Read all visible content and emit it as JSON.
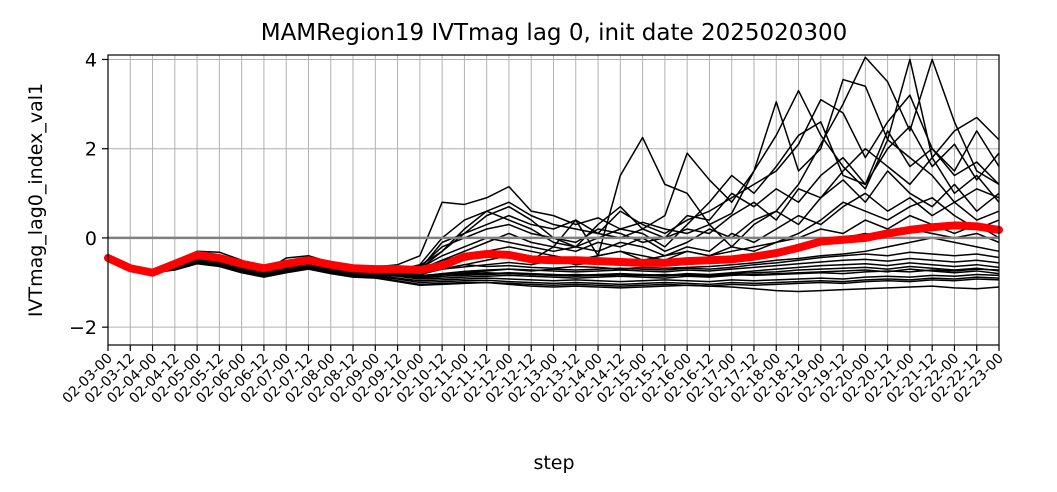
{
  "chart_data": {
    "type": "line",
    "title": "MAMRegion19 IVTmag lag 0, init date 2025020300",
    "xlabel": "step",
    "ylabel": "IVTmag_lag0_index_val1",
    "ylim": [
      -2.4,
      4.1
    ],
    "yticks": [
      -2,
      0,
      2,
      4
    ],
    "ytick_labels": [
      "−2",
      "0",
      "2",
      "4"
    ],
    "grid": true,
    "zero_line_color": "#808080",
    "ensemble_color": "#000000",
    "mean_color": "#ff0000",
    "categories": [
      "02-03-00",
      "02-03-12",
      "02-04-00",
      "02-04-12",
      "02-05-00",
      "02-05-12",
      "02-06-00",
      "02-06-12",
      "02-07-00",
      "02-07-12",
      "02-08-00",
      "02-08-12",
      "02-09-00",
      "02-09-12",
      "02-10-00",
      "02-10-12",
      "02-11-00",
      "02-11-12",
      "02-12-00",
      "02-12-12",
      "02-13-00",
      "02-13-12",
      "02-14-00",
      "02-14-12",
      "02-15-00",
      "02-15-12",
      "02-16-00",
      "02-16-12",
      "02-17-00",
      "02-17-12",
      "02-18-00",
      "02-18-12",
      "02-19-00",
      "02-19-12",
      "02-20-00",
      "02-20-12",
      "02-21-00",
      "02-21-12",
      "02-22-00",
      "02-22-12",
      "02-23-00"
    ],
    "ensemble_mean": [
      -0.45,
      -0.68,
      -0.78,
      -0.58,
      -0.38,
      -0.45,
      -0.58,
      -0.68,
      -0.58,
      -0.5,
      -0.6,
      -0.68,
      -0.7,
      -0.7,
      -0.72,
      -0.62,
      -0.42,
      -0.36,
      -0.38,
      -0.48,
      -0.5,
      -0.5,
      -0.52,
      -0.54,
      -0.56,
      -0.56,
      -0.52,
      -0.5,
      -0.48,
      -0.42,
      -0.34,
      -0.22,
      -0.08,
      -0.04,
      0.0,
      0.1,
      0.18,
      0.24,
      0.28,
      0.26,
      0.18
    ],
    "ensemble_members": [
      [
        -0.45,
        -0.68,
        -0.78,
        -0.55,
        -0.3,
        -0.32,
        -0.5,
        -0.75,
        -0.45,
        -0.4,
        -0.55,
        -0.62,
        -0.65,
        -0.6,
        -0.4,
        0.8,
        0.75,
        0.9,
        1.15,
        0.6,
        0.5,
        0.3,
        0.45,
        0.2,
        0.35,
        0.2,
        0.1,
        0.3,
        0.55,
        1.5,
        2.3,
        3.3,
        2.3,
        1.6,
        1.1,
        2.2,
        1.8,
        1.4,
        0.8,
        1.1,
        0.9
      ],
      [
        -0.45,
        -0.68,
        -0.78,
        -0.58,
        -0.38,
        -0.45,
        -0.6,
        -0.7,
        -0.6,
        -0.52,
        -0.62,
        -0.7,
        -0.72,
        -0.72,
        -0.75,
        -0.6,
        -0.5,
        -0.4,
        -0.42,
        -0.5,
        -0.2,
        0.4,
        -0.4,
        1.4,
        2.25,
        1.2,
        1.0,
        0.3,
        -0.2,
        0.3,
        0.6,
        1.2,
        2.1,
        3.0,
        4.05,
        3.5,
        2.4,
        4.0,
        2.6,
        1.5,
        1.2
      ],
      [
        -0.45,
        -0.68,
        -0.78,
        -0.6,
        -0.42,
        -0.48,
        -0.62,
        -0.72,
        -0.62,
        -0.55,
        -0.65,
        -0.72,
        -0.75,
        -0.74,
        -0.7,
        -0.3,
        0.2,
        0.6,
        0.8,
        0.5,
        0.3,
        0.2,
        0.1,
        0.0,
        0.2,
        0.5,
        1.9,
        1.3,
        0.8,
        1.5,
        3.05,
        1.5,
        2.0,
        3.55,
        3.4,
        2.2,
        4.0,
        1.8,
        2.4,
        2.7,
        2.2
      ],
      [
        -0.45,
        -0.68,
        -0.78,
        -0.62,
        -0.4,
        -0.46,
        -0.6,
        -0.7,
        -0.6,
        -0.54,
        -0.64,
        -0.7,
        -0.73,
        -0.75,
        -0.7,
        -0.1,
        0.1,
        0.3,
        0.5,
        0.3,
        0.2,
        0.4,
        0.1,
        0.6,
        0.3,
        0.1,
        0.4,
        0.6,
        0.9,
        1.2,
        1.5,
        2.1,
        3.1,
        2.8,
        1.8,
        2.6,
        3.2,
        2.0,
        1.5,
        2.4,
        1.6
      ],
      [
        -0.45,
        -0.68,
        -0.78,
        -0.58,
        -0.36,
        -0.44,
        -0.58,
        -0.68,
        -0.58,
        -0.5,
        -0.6,
        -0.68,
        -0.7,
        -0.72,
        -0.6,
        0.0,
        0.4,
        0.6,
        0.4,
        0.2,
        -0.1,
        -0.2,
        0.0,
        0.2,
        0.1,
        -0.2,
        0.3,
        0.8,
        1.4,
        1.0,
        1.6,
        2.3,
        2.6,
        1.4,
        1.2,
        2.0,
        2.5,
        1.6,
        2.1,
        1.3,
        1.9
      ],
      [
        -0.45,
        -0.68,
        -0.78,
        -0.56,
        -0.34,
        -0.42,
        -0.56,
        -0.66,
        -0.56,
        -0.48,
        -0.58,
        -0.66,
        -0.68,
        -0.7,
        -0.65,
        -0.2,
        0.0,
        0.2,
        0.3,
        0.1,
        0.0,
        -0.1,
        0.2,
        0.1,
        -0.1,
        0.0,
        0.2,
        0.1,
        0.5,
        0.8,
        0.4,
        1.1,
        0.9,
        1.5,
        2.0,
        1.6,
        1.2,
        1.8,
        1.0,
        1.4,
        0.8
      ],
      [
        -0.45,
        -0.68,
        -0.78,
        -0.6,
        -0.4,
        -0.46,
        -0.6,
        -0.72,
        -0.62,
        -0.54,
        -0.64,
        -0.72,
        -0.75,
        -0.75,
        -0.72,
        -0.5,
        -0.3,
        -0.1,
        0.1,
        -0.1,
        -0.2,
        -0.3,
        -0.1,
        -0.2,
        0.0,
        -0.3,
        -0.1,
        0.2,
        0.0,
        0.4,
        0.6,
        0.3,
        0.9,
        1.3,
        0.8,
        1.5,
        1.0,
        0.7,
        1.2,
        0.6,
        1.0
      ],
      [
        -0.45,
        -0.68,
        -0.78,
        -0.58,
        -0.38,
        -0.45,
        -0.58,
        -0.68,
        -0.58,
        -0.5,
        -0.6,
        -0.68,
        -0.7,
        -0.7,
        -0.68,
        -0.4,
        -0.2,
        0.0,
        -0.1,
        -0.2,
        -0.3,
        -0.2,
        -0.3,
        -0.1,
        -0.2,
        -0.4,
        -0.2,
        -0.3,
        0.1,
        -0.1,
        0.2,
        0.5,
        0.3,
        0.7,
        1.0,
        0.6,
        0.9,
        0.5,
        0.8,
        0.4,
        0.6
      ],
      [
        -0.45,
        -0.68,
        -0.78,
        -0.62,
        -0.44,
        -0.5,
        -0.64,
        -0.74,
        -0.64,
        -0.56,
        -0.66,
        -0.74,
        -0.76,
        -0.78,
        -0.8,
        -0.7,
        -0.6,
        -0.5,
        -0.4,
        -0.5,
        -0.4,
        -0.5,
        -0.4,
        -0.3,
        -0.4,
        -0.5,
        -0.3,
        -0.4,
        -0.3,
        -0.2,
        -0.1,
        0.0,
        0.2,
        0.1,
        0.4,
        0.2,
        0.5,
        0.3,
        0.1,
        0.3,
        0.0
      ],
      [
        -0.45,
        -0.68,
        -0.78,
        -0.6,
        -0.4,
        -0.48,
        -0.62,
        -0.72,
        -0.62,
        -0.54,
        -0.64,
        -0.72,
        -0.74,
        -0.76,
        -0.78,
        -0.7,
        -0.65,
        -0.6,
        -0.55,
        -0.6,
        -0.5,
        -0.6,
        -0.55,
        -0.5,
        -0.55,
        -0.6,
        -0.5,
        -0.55,
        -0.45,
        -0.4,
        -0.3,
        -0.2,
        -0.1,
        0.0,
        0.1,
        0.0,
        0.2,
        0.1,
        0.0,
        0.1,
        -0.1
      ],
      [
        -0.45,
        -0.68,
        -0.78,
        -0.64,
        -0.46,
        -0.52,
        -0.66,
        -0.76,
        -0.66,
        -0.58,
        -0.68,
        -0.76,
        -0.78,
        -0.82,
        -0.88,
        -0.82,
        -0.78,
        -0.74,
        -0.7,
        -0.74,
        -0.7,
        -0.72,
        -0.7,
        -0.68,
        -0.7,
        -0.72,
        -0.68,
        -0.7,
        -0.66,
        -0.6,
        -0.56,
        -0.5,
        -0.44,
        -0.4,
        -0.36,
        -0.4,
        -0.32,
        -0.36,
        -0.4,
        -0.36,
        -0.44
      ],
      [
        -0.45,
        -0.68,
        -0.78,
        -0.62,
        -0.44,
        -0.5,
        -0.64,
        -0.74,
        -0.64,
        -0.56,
        -0.66,
        -0.74,
        -0.76,
        -0.8,
        -0.85,
        -0.8,
        -0.75,
        -0.72,
        -0.7,
        -0.72,
        -0.74,
        -0.76,
        -0.74,
        -0.72,
        -0.74,
        -0.76,
        -0.72,
        -0.74,
        -0.7,
        -0.66,
        -0.62,
        -0.58,
        -0.54,
        -0.5,
        -0.48,
        -0.52,
        -0.46,
        -0.5,
        -0.54,
        -0.5,
        -0.56
      ],
      [
        -0.45,
        -0.68,
        -0.78,
        -0.66,
        -0.48,
        -0.54,
        -0.68,
        -0.78,
        -0.68,
        -0.6,
        -0.7,
        -0.78,
        -0.8,
        -0.84,
        -0.9,
        -0.86,
        -0.82,
        -0.8,
        -0.78,
        -0.8,
        -0.82,
        -0.84,
        -0.82,
        -0.8,
        -0.82,
        -0.84,
        -0.8,
        -0.82,
        -0.78,
        -0.74,
        -0.7,
        -0.66,
        -0.62,
        -0.6,
        -0.58,
        -0.62,
        -0.56,
        -0.6,
        -0.64,
        -0.6,
        -0.66
      ],
      [
        -0.45,
        -0.68,
        -0.78,
        -0.64,
        -0.46,
        -0.52,
        -0.66,
        -0.76,
        -0.66,
        -0.58,
        -0.68,
        -0.76,
        -0.78,
        -0.82,
        -0.88,
        -0.86,
        -0.84,
        -0.82,
        -0.8,
        -0.82,
        -0.84,
        -0.86,
        -0.84,
        -0.82,
        -0.84,
        -0.86,
        -0.82,
        -0.84,
        -0.8,
        -0.78,
        -0.76,
        -0.72,
        -0.7,
        -0.68,
        -0.66,
        -0.7,
        -0.64,
        -0.68,
        -0.72,
        -0.68,
        -0.74
      ],
      [
        -0.45,
        -0.68,
        -0.78,
        -0.66,
        -0.5,
        -0.56,
        -0.7,
        -0.8,
        -0.7,
        -0.62,
        -0.72,
        -0.8,
        -0.82,
        -0.86,
        -0.92,
        -0.9,
        -0.88,
        -0.86,
        -0.84,
        -0.86,
        -0.88,
        -0.9,
        -0.88,
        -0.86,
        -0.88,
        -0.9,
        -0.86,
        -0.88,
        -0.84,
        -0.82,
        -0.8,
        -0.78,
        -0.76,
        -0.74,
        -0.72,
        -0.76,
        -0.7,
        -0.74,
        -0.78,
        -0.74,
        -0.8
      ],
      [
        -0.45,
        -0.68,
        -0.78,
        -0.62,
        -0.42,
        -0.48,
        -0.62,
        -0.72,
        -0.62,
        -0.54,
        -0.64,
        -0.72,
        -0.74,
        -0.78,
        -0.84,
        -0.82,
        -0.8,
        -0.78,
        -0.8,
        -0.82,
        -0.84,
        -0.82,
        -0.84,
        -0.86,
        -0.84,
        -0.82,
        -0.84,
        -0.86,
        -0.82,
        -0.84,
        -0.82,
        -0.8,
        -0.78,
        -0.8,
        -0.76,
        -0.74,
        -0.76,
        -0.72,
        -0.74,
        -0.7,
        -0.72
      ],
      [
        -0.45,
        -0.68,
        -0.78,
        -0.68,
        -0.52,
        -0.58,
        -0.72,
        -0.82,
        -0.72,
        -0.64,
        -0.74,
        -0.82,
        -0.84,
        -0.9,
        -0.96,
        -0.94,
        -0.92,
        -0.9,
        -0.92,
        -0.94,
        -0.96,
        -0.94,
        -0.96,
        -0.98,
        -0.96,
        -0.94,
        -0.96,
        -0.98,
        -0.94,
        -0.96,
        -0.94,
        -0.92,
        -0.9,
        -0.92,
        -0.88,
        -0.86,
        -0.88,
        -0.84,
        -0.86,
        -0.82,
        -0.84
      ],
      [
        -0.45,
        -0.68,
        -0.78,
        -0.7,
        -0.55,
        -0.6,
        -0.74,
        -0.84,
        -0.74,
        -0.66,
        -0.76,
        -0.84,
        -0.86,
        -0.92,
        -1.0,
        -0.98,
        -0.96,
        -0.95,
        -0.98,
        -1.0,
        -1.02,
        -1.0,
        -1.02,
        -1.04,
        -1.02,
        -1.0,
        -1.02,
        -1.04,
        -1.0,
        -1.02,
        -1.0,
        -0.98,
        -0.96,
        -0.98,
        -0.94,
        -0.92,
        -0.94,
        -0.9,
        -0.92,
        -0.88,
        -0.9
      ],
      [
        -0.45,
        -0.68,
        -0.78,
        -0.7,
        -0.56,
        -0.62,
        -0.76,
        -0.86,
        -0.76,
        -0.68,
        -0.78,
        -0.86,
        -0.88,
        -0.96,
        -1.04,
        -1.02,
        -1.0,
        -1.0,
        -1.04,
        -1.08,
        -1.1,
        -1.08,
        -1.1,
        -1.12,
        -1.1,
        -1.08,
        -1.06,
        -1.08,
        -1.04,
        -1.06,
        -1.04,
        -1.02,
        -1.0,
        -1.02,
        -0.98,
        -0.96,
        -0.98,
        -0.94,
        -0.96,
        -0.92,
        -0.94
      ],
      [
        -0.45,
        -0.68,
        -0.78,
        -0.72,
        -0.58,
        -0.64,
        -0.78,
        -0.88,
        -0.78,
        -0.7,
        -0.8,
        -0.88,
        -0.9,
        -0.98,
        -1.06,
        -1.04,
        -1.02,
        -1.0,
        -1.02,
        -1.04,
        -1.06,
        -1.04,
        -1.06,
        -1.08,
        -1.06,
        -1.04,
        -1.06,
        -1.08,
        -1.1,
        -1.14,
        -1.18,
        -1.2,
        -1.18,
        -1.16,
        -1.14,
        -1.12,
        -1.1,
        -1.08,
        -1.12,
        -1.14,
        -1.1
      ],
      [
        -0.45,
        -0.68,
        -0.78,
        -0.64,
        -0.46,
        -0.52,
        -0.66,
        -0.76,
        -0.66,
        -0.58,
        -0.68,
        -0.76,
        -0.78,
        -0.8,
        -0.82,
        -0.7,
        -0.6,
        -0.64,
        -0.62,
        -0.66,
        -0.68,
        -0.64,
        -0.66,
        -0.7,
        -0.66,
        -0.68,
        -0.66,
        -0.64,
        -0.6,
        -0.56,
        -0.5,
        -0.46,
        -0.4,
        -0.36,
        -0.3,
        -0.2,
        -0.1,
        0.0,
        -0.1,
        -0.2,
        -0.3
      ],
      [
        -0.45,
        -0.68,
        -0.78,
        -0.6,
        -0.4,
        -0.46,
        -0.6,
        -0.7,
        -0.6,
        -0.52,
        -0.62,
        -0.7,
        -0.72,
        -0.74,
        -0.7,
        -0.5,
        -0.4,
        -0.3,
        -0.2,
        -0.3,
        -0.4,
        -0.5,
        -0.4,
        -0.3,
        -0.5,
        -0.4,
        -0.3,
        -0.4,
        -0.2,
        -0.3,
        -0.1,
        0.1,
        0.4,
        0.8,
        0.6,
        0.4,
        0.7,
        0.9,
        0.5,
        0.2,
        0.4
      ],
      [
        -0.45,
        -0.68,
        -0.78,
        -0.58,
        -0.38,
        -0.44,
        -0.58,
        -0.68,
        -0.58,
        -0.5,
        -0.6,
        -0.68,
        -0.7,
        -0.7,
        -0.62,
        -0.3,
        0.1,
        0.5,
        0.7,
        0.4,
        0.0,
        -0.2,
        0.3,
        0.7,
        0.2,
        0.0,
        0.5,
        0.4,
        1.0,
        0.7,
        1.1,
        0.8,
        1.4,
        1.8,
        1.2,
        2.4,
        1.6,
        2.0,
        1.4,
        1.7,
        1.2
      ]
    ]
  }
}
